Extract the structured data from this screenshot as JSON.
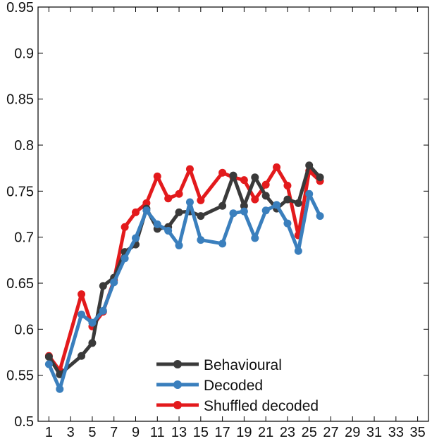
{
  "chart_data": {
    "type": "line",
    "title": "",
    "xlabel": "",
    "ylabel": "",
    "xlim": [
      0,
      36
    ],
    "ylim": [
      0.5,
      0.95
    ],
    "x_ticks": [
      1,
      3,
      5,
      7,
      9,
      11,
      13,
      15,
      17,
      19,
      21,
      23,
      25,
      27,
      29,
      31,
      33,
      35
    ],
    "y_ticks": [
      0.5,
      0.55,
      0.6,
      0.65,
      0.7,
      0.75,
      0.8,
      0.85,
      0.9,
      0.95
    ],
    "y_tick_labels": [
      "0.5",
      "0.55",
      "0.6",
      "0.65",
      "0.7",
      "0.75",
      "0.8",
      "0.85",
      "0.9",
      "0.95"
    ],
    "grid": false,
    "legend_position": "bottom-center",
    "series": [
      {
        "name": "Shuffled decoded",
        "color": "#e31a1c",
        "x": [
          1,
          2,
          4,
          5,
          6,
          7,
          8,
          9,
          10,
          11,
          12,
          13,
          14,
          15,
          17,
          18,
          19,
          20,
          21,
          22,
          23,
          24,
          25,
          26
        ],
        "y": [
          0.571,
          0.555,
          0.638,
          0.603,
          0.619,
          0.653,
          0.711,
          0.727,
          0.737,
          0.766,
          0.742,
          0.747,
          0.774,
          0.74,
          0.77,
          0.765,
          0.762,
          0.741,
          0.757,
          0.776,
          0.756,
          0.702,
          0.772,
          0.761
        ]
      },
      {
        "name": "Behavioural",
        "color": "#3a3a3a",
        "x": [
          1,
          2,
          4,
          5,
          6,
          7,
          8,
          9,
          10,
          11,
          12,
          13,
          14,
          15,
          17,
          18,
          19,
          20,
          21,
          22,
          23,
          24,
          25,
          26
        ],
        "y": [
          0.57,
          0.551,
          0.571,
          0.585,
          0.647,
          0.656,
          0.684,
          0.692,
          0.731,
          0.709,
          0.711,
          0.727,
          0.728,
          0.723,
          0.734,
          0.767,
          0.734,
          0.765,
          0.745,
          0.731,
          0.741,
          0.737,
          0.778,
          0.765
        ]
      },
      {
        "name": "Decoded",
        "color": "#3a7fbd",
        "x": [
          1,
          2,
          4,
          5,
          6,
          7,
          8,
          9,
          10,
          11,
          12,
          13,
          14,
          15,
          17,
          18,
          19,
          20,
          21,
          22,
          23,
          24,
          25,
          26
        ],
        "y": [
          0.562,
          0.535,
          0.616,
          0.607,
          0.62,
          0.651,
          0.677,
          0.699,
          0.729,
          0.714,
          0.707,
          0.691,
          0.738,
          0.697,
          0.693,
          0.726,
          0.728,
          0.699,
          0.729,
          0.735,
          0.715,
          0.685,
          0.747,
          0.723
        ]
      }
    ],
    "legend": [
      {
        "name": "Behavioural",
        "color": "#3a3a3a"
      },
      {
        "name": "Decoded",
        "color": "#3a7fbd"
      },
      {
        "name": "Shuffled decoded",
        "color": "#e31a1c"
      }
    ]
  }
}
